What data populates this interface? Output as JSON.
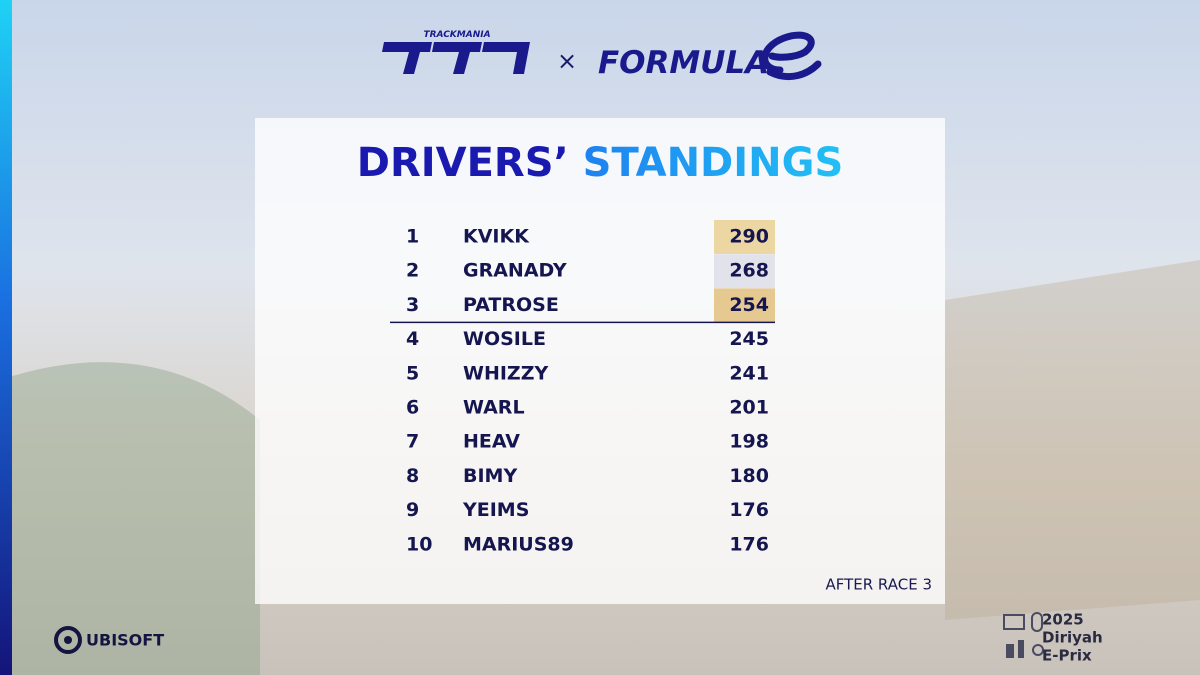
{
  "header": {
    "brand_small": "TRACKMANIA",
    "cross": "×",
    "partner": "FORMULA"
  },
  "title": "DRIVERS’ STANDINGS",
  "table": {
    "rows": [
      [
        "1",
        "KVIKK",
        "290"
      ],
      [
        "2",
        "GRANADY",
        "268"
      ],
      [
        "3",
        "PATROSE",
        "254"
      ],
      [
        "4",
        "WOSILE",
        "245"
      ],
      [
        "5",
        "WHIZZY",
        "241"
      ],
      [
        "6",
        "WARL",
        "201"
      ],
      [
        "7",
        "HEAV",
        "198"
      ],
      [
        "8",
        "BIMY",
        "180"
      ],
      [
        "9",
        "YEIMS",
        "176"
      ],
      [
        "10",
        "MARIUS89",
        "176"
      ]
    ]
  },
  "note": "AFTER RACE 3",
  "footer": {
    "publisher": "UBISOFT",
    "event": [
      "2025",
      "Diriyah",
      "E-Prix"
    ]
  }
}
